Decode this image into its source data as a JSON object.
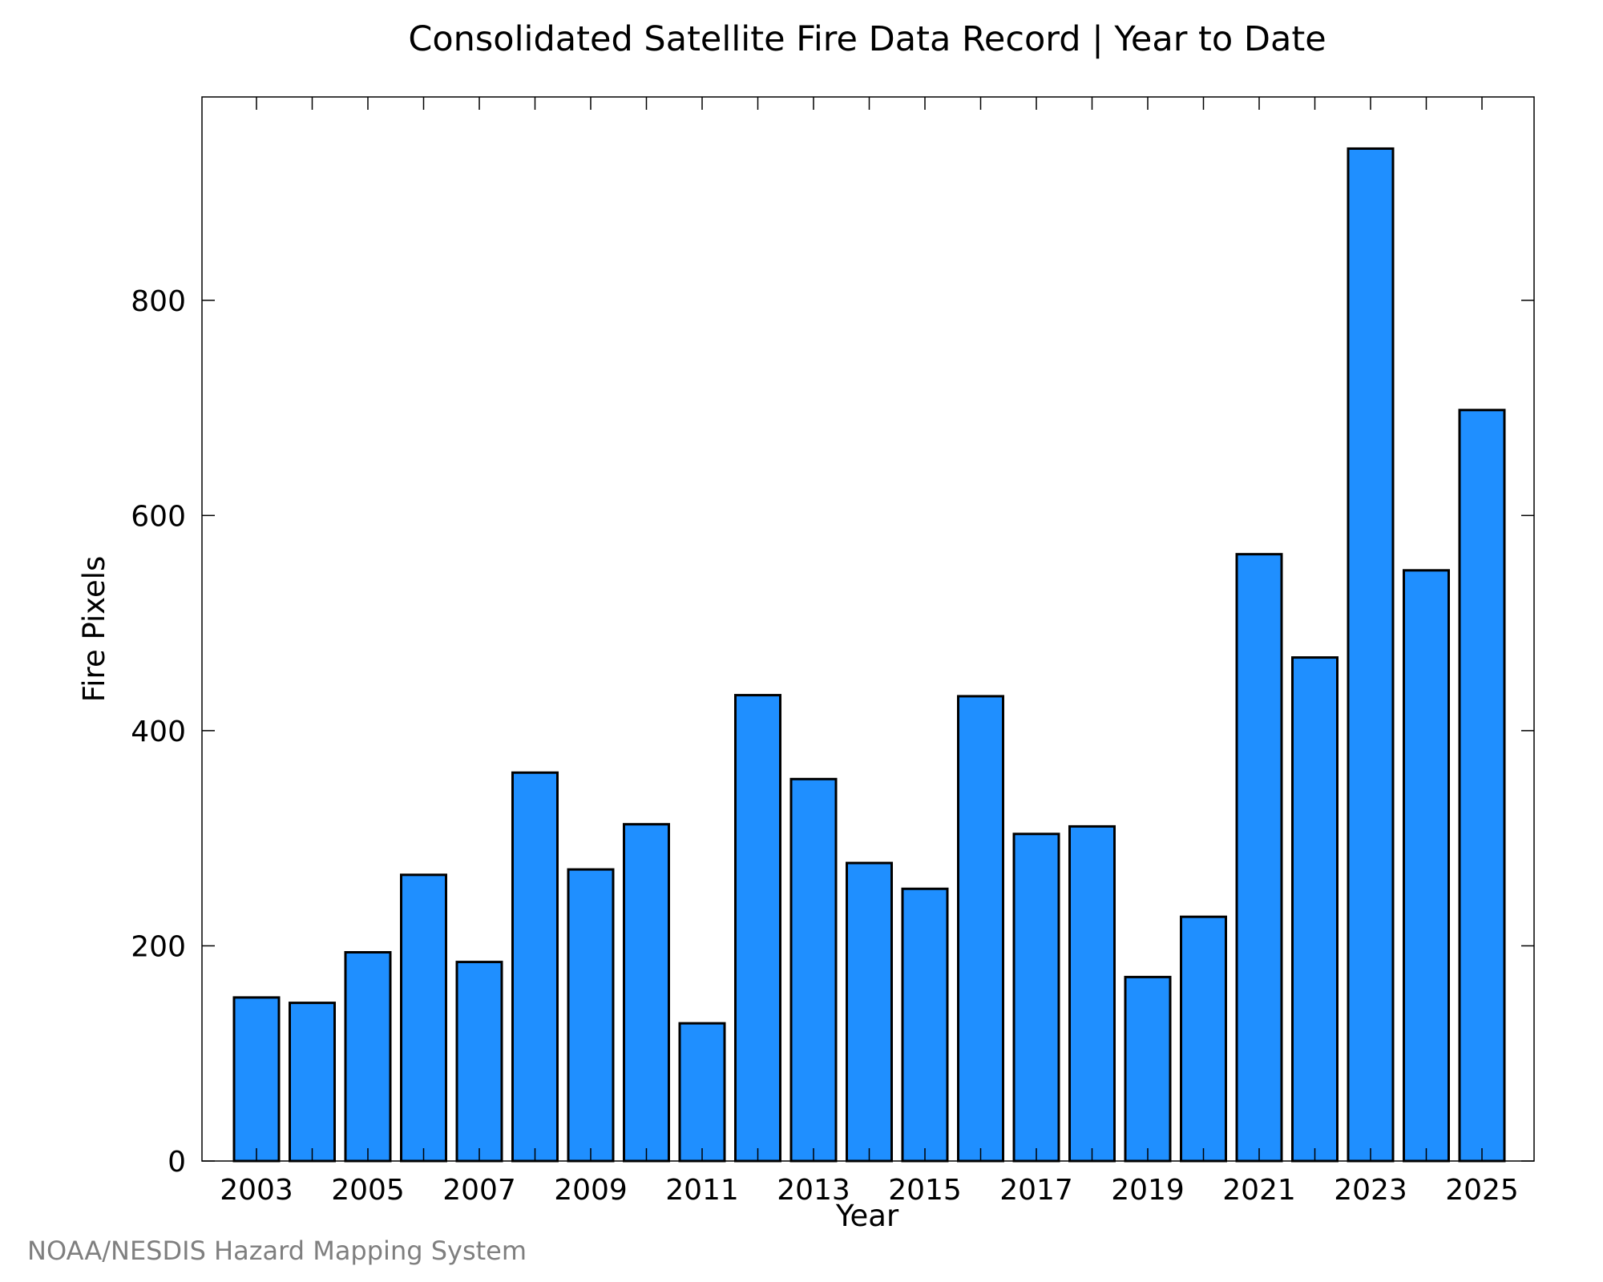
{
  "chart_data": {
    "type": "bar",
    "title": "Consolidated Satellite Fire Data Record | Year to Date",
    "xlabel": "Year",
    "ylabel": "Fire Pixels",
    "categories": [
      "2003",
      "2004",
      "2005",
      "2006",
      "2007",
      "2008",
      "2009",
      "2010",
      "2011",
      "2012",
      "2013",
      "2014",
      "2015",
      "2016",
      "2017",
      "2018",
      "2019",
      "2020",
      "2021",
      "2022",
      "2023",
      "2024",
      "2025"
    ],
    "values": [
      152,
      147,
      194,
      266,
      185,
      361,
      271,
      313,
      128,
      433,
      355,
      277,
      253,
      432,
      304,
      311,
      171,
      227,
      564,
      468,
      941,
      549,
      698
    ],
    "x_tick_labels": [
      "2003",
      "2005",
      "2007",
      "2009",
      "2011",
      "2013",
      "2015",
      "2017",
      "2019",
      "2021",
      "2023",
      "2025"
    ],
    "y_ticks": [
      0,
      200,
      400,
      600,
      800
    ],
    "ylim": [
      0,
      989
    ],
    "grid": false,
    "legend": "none",
    "bar_color": "#1f8fff",
    "bar_edge_color": "#000000"
  },
  "credit": "NOAA/NESDIS Hazard Mapping System"
}
